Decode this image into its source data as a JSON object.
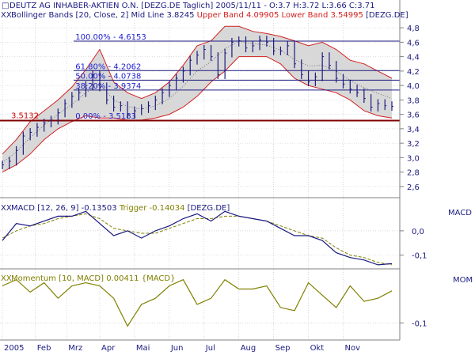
{
  "header": {
    "line1_icon": "square-marker-icon",
    "line1": "DEUTZ AG INHABER-AKTIEN O.N. [DEZG.DE  Taglich] 2005/11/11 - O:3.7 H:3.72 L:3.66 C:3.71",
    "line2_icon": "crossed-marker-icon",
    "line2_main": "Bollinger Bands [20, Close, 2] Mid Line 3.8245 ",
    "line2_bands": "Upper Band 4.09905 Lower Band 3.54995",
    "line2_tail": " [DEZG.DE]"
  },
  "macd_header": {
    "icon": "crossed-marker-icon",
    "main": "MACD [12, 26, 9] -0.13503 ",
    "trigger": "Trigger -0.14034",
    "tail": " [DEZG.DE]",
    "axis_label": "MACD"
  },
  "mom_header": {
    "icon": "crossed-marker-icon",
    "text": "Momentum [10, MACD] 0.00411 {MACD}",
    "axis_label": "MOM"
  },
  "colors": {
    "price": "#1a1a80",
    "fib": "#1a1a80",
    "fib_text": "#2020d0",
    "bands": "#d22020",
    "band_fill": "#d8d8d8",
    "support": "#800000",
    "support_text": "#d00000",
    "macd": "#1a1a80",
    "trigger": "#808000",
    "momentum": "#808000",
    "grid": "#c0c0c0"
  },
  "chart_data": [
    {
      "type": "line",
      "title": "DEUTZ AG INHABER-AKTIEN O.N. [DEZG.DE  Taglich]",
      "x_tick_labels": [
        "2005",
        "Feb",
        "Mrz",
        "Apr",
        "Mai",
        "Jun",
        "Jul",
        "Aug",
        "Sep",
        "Okt",
        "Nov"
      ],
      "y_tick_labels": [
        "4,8",
        "4,6",
        "4,4",
        "4,2",
        "4,0",
        "3,8",
        "3,6",
        "3,4",
        "3,2",
        "3,0",
        "2,8",
        "2,6"
      ],
      "ylim": [
        2.5,
        4.9
      ],
      "grid": true,
      "fibonacci_levels": [
        {
          "label": "100.00% - 4.6153",
          "value": 4.6153
        },
        {
          "label": "61.80% - 4.2062",
          "value": 4.2062
        },
        {
          "label": "50.00% - 4.0738",
          "value": 4.0738
        },
        {
          "label": "38.20% - 3.9374",
          "value": 3.9374
        },
        {
          "label": "0.00% - 3.5183",
          "value": 3.5183
        }
      ],
      "support_level": {
        "label": "3.5132",
        "value": 3.5132
      },
      "close_series": {
        "x": [
          0,
          4,
          8,
          12,
          16,
          20,
          24,
          28,
          32,
          36,
          40,
          44,
          48,
          52,
          56,
          60,
          64,
          68,
          72,
          76,
          80,
          84,
          88,
          92,
          96,
          100,
          104,
          108,
          112,
          116,
          120,
          124,
          128,
          132,
          136,
          140,
          144,
          148,
          152,
          156,
          160,
          164,
          168,
          172,
          176,
          180,
          184,
          188,
          192,
          196,
          200,
          204,
          208,
          212,
          216,
          220,
          224
        ],
        "values": [
          2.9,
          2.95,
          3.1,
          3.3,
          3.35,
          3.42,
          3.48,
          3.52,
          3.62,
          3.75,
          3.85,
          3.9,
          4.0,
          4.15,
          3.98,
          3.8,
          3.7,
          3.72,
          3.6,
          3.65,
          3.68,
          3.72,
          3.8,
          3.9,
          4.0,
          4.1,
          4.2,
          4.35,
          4.42,
          4.5,
          4.4,
          4.15,
          4.45,
          4.6,
          4.62,
          4.52,
          4.55,
          4.63,
          4.6,
          4.48,
          4.48,
          4.55,
          4.3,
          4.15,
          4.05,
          4.12,
          4.4,
          4.28,
          4.1,
          4.02,
          3.95,
          3.9,
          3.82,
          3.7,
          3.75,
          3.72,
          3.71
        ]
      },
      "upper_band": {
        "x": [
          0,
          8,
          16,
          24,
          32,
          40,
          48,
          56,
          64,
          72,
          80,
          88,
          96,
          104,
          112,
          120,
          128,
          136,
          144,
          152,
          160,
          168,
          176,
          184,
          192,
          200,
          208,
          216,
          224
        ],
        "values": [
          3.05,
          3.25,
          3.5,
          3.65,
          3.8,
          3.98,
          4.22,
          4.5,
          4.05,
          3.9,
          3.82,
          3.9,
          4.05,
          4.28,
          4.55,
          4.62,
          4.82,
          4.82,
          4.75,
          4.72,
          4.68,
          4.62,
          4.55,
          4.6,
          4.5,
          4.35,
          4.3,
          4.2,
          4.1
        ]
      },
      "lower_band": {
        "x": [
          0,
          8,
          16,
          24,
          32,
          40,
          48,
          56,
          64,
          72,
          80,
          88,
          96,
          104,
          112,
          120,
          128,
          136,
          144,
          152,
          160,
          168,
          176,
          184,
          192,
          200,
          208,
          216,
          224
        ],
        "values": [
          2.8,
          2.9,
          3.05,
          3.25,
          3.4,
          3.5,
          3.58,
          3.55,
          3.55,
          3.52,
          3.52,
          3.55,
          3.6,
          3.7,
          3.85,
          4.05,
          4.2,
          4.4,
          4.4,
          4.4,
          4.3,
          4.1,
          4.0,
          3.95,
          3.9,
          3.8,
          3.65,
          3.58,
          3.55
        ]
      },
      "mid_line": {
        "x": [
          0,
          8,
          16,
          24,
          32,
          40,
          48,
          56,
          64,
          72,
          80,
          88,
          96,
          104,
          112,
          120,
          128,
          136,
          144,
          152,
          160,
          168,
          176,
          184,
          192,
          200,
          208,
          216,
          224
        ],
        "values": [
          2.93,
          3.08,
          3.28,
          3.45,
          3.6,
          3.74,
          3.9,
          4.02,
          3.8,
          3.71,
          3.67,
          3.72,
          3.82,
          3.99,
          4.2,
          4.33,
          4.51,
          4.61,
          4.58,
          4.56,
          4.49,
          4.36,
          4.27,
          4.28,
          4.2,
          4.07,
          3.97,
          3.89,
          3.82
        ]
      }
    },
    {
      "type": "line",
      "title": "MACD [12, 26, 9]",
      "y_tick_labels": [
        "0,0",
        "-0,1"
      ],
      "ylim": [
        -0.15,
        0.12
      ],
      "series": [
        {
          "name": "MACD",
          "x": [
            0,
            8,
            16,
            24,
            32,
            40,
            48,
            56,
            64,
            72,
            80,
            88,
            96,
            104,
            112,
            120,
            128,
            136,
            144,
            152,
            160,
            168,
            176,
            184,
            192,
            200,
            208,
            216,
            224
          ],
          "values": [
            -0.04,
            0.03,
            0.02,
            0.04,
            0.06,
            0.06,
            0.08,
            0.03,
            -0.02,
            0.0,
            -0.03,
            0.0,
            0.02,
            0.05,
            0.07,
            0.04,
            0.08,
            0.06,
            0.05,
            0.04,
            0.01,
            -0.02,
            -0.02,
            -0.04,
            -0.09,
            -0.11,
            -0.12,
            -0.14,
            -0.135
          ]
        },
        {
          "name": "Trigger",
          "x": [
            0,
            8,
            16,
            24,
            32,
            40,
            48,
            56,
            64,
            72,
            80,
            88,
            96,
            104,
            112,
            120,
            128,
            136,
            144,
            152,
            160,
            168,
            176,
            184,
            192,
            200,
            208,
            216,
            224
          ],
          "values": [
            -0.03,
            0.0,
            0.02,
            0.03,
            0.05,
            0.06,
            0.07,
            0.05,
            0.01,
            0.0,
            -0.01,
            -0.01,
            0.01,
            0.03,
            0.05,
            0.05,
            0.06,
            0.06,
            0.05,
            0.04,
            0.02,
            0.0,
            -0.02,
            -0.03,
            -0.07,
            -0.1,
            -0.11,
            -0.13,
            -0.14
          ]
        }
      ]
    },
    {
      "type": "line",
      "title": "Momentum [10, MACD]",
      "y_tick_labels": [
        "-0,1"
      ],
      "ylim": [
        -0.15,
        0.07
      ],
      "series": [
        {
          "name": "Momentum",
          "x": [
            0,
            8,
            16,
            24,
            32,
            40,
            48,
            56,
            64,
            72,
            80,
            88,
            96,
            104,
            112,
            120,
            128,
            136,
            144,
            152,
            160,
            168,
            176,
            184,
            192,
            200,
            208,
            216,
            224
          ],
          "values": [
            0.02,
            0.04,
            0.0,
            0.03,
            -0.02,
            0.02,
            0.03,
            0.02,
            -0.02,
            -0.11,
            -0.04,
            -0.02,
            0.02,
            0.04,
            -0.04,
            -0.02,
            0.04,
            0.01,
            0.01,
            0.02,
            -0.05,
            -0.06,
            0.03,
            -0.01,
            -0.05,
            0.02,
            -0.03,
            -0.02,
            0.004
          ]
        }
      ]
    }
  ]
}
